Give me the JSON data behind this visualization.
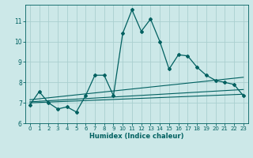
{
  "xlabel": "Humidex (Indice chaleur)",
  "ylabel": "",
  "bg_color": "#cce8e8",
  "grid_color": "#aacfcf",
  "line_color": "#006060",
  "xlim": [
    -0.5,
    23.5
  ],
  "ylim": [
    6.0,
    11.8
  ],
  "yticks": [
    6,
    7,
    8,
    9,
    10,
    11
  ],
  "xticks": [
    0,
    1,
    2,
    3,
    4,
    5,
    6,
    7,
    8,
    9,
    10,
    11,
    12,
    13,
    14,
    15,
    16,
    17,
    18,
    19,
    20,
    21,
    22,
    23
  ],
  "main_x": [
    0,
    1,
    2,
    3,
    4,
    5,
    6,
    7,
    8,
    9,
    10,
    11,
    12,
    13,
    14,
    15,
    16,
    17,
    18,
    19,
    20,
    21,
    22,
    23
  ],
  "main_y": [
    6.9,
    7.55,
    7.0,
    6.7,
    6.8,
    6.55,
    7.35,
    8.35,
    8.35,
    7.35,
    10.4,
    11.55,
    10.5,
    11.1,
    10.0,
    8.65,
    9.35,
    9.3,
    8.75,
    8.35,
    8.1,
    8.0,
    7.9,
    7.35
  ],
  "line1_x": [
    0,
    23
  ],
  "line1_y": [
    7.05,
    7.65
  ],
  "line2_x": [
    0,
    23
  ],
  "line2_y": [
    7.15,
    8.25
  ],
  "line3_x": [
    0,
    23
  ],
  "line3_y": [
    7.0,
    7.42
  ]
}
